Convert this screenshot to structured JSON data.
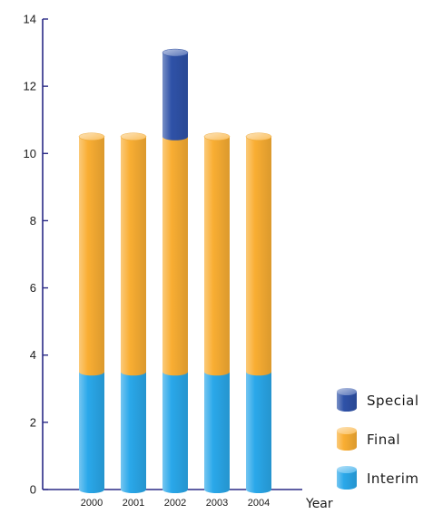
{
  "chart_data": {
    "type": "bar",
    "stacked": true,
    "style": "3d-cylinder",
    "categories": [
      "2000",
      "2001",
      "2002",
      "2003",
      "2004"
    ],
    "series": [
      {
        "name": "Interim",
        "values": [
          3.5,
          3.5,
          3.5,
          3.5,
          3.5
        ],
        "color": "#2aa8ea"
      },
      {
        "name": "Final",
        "values": [
          7.0,
          7.0,
          7.0,
          7.0,
          7.0
        ],
        "color": "#f9ae33"
      },
      {
        "name": "Special",
        "values": [
          0,
          0,
          2.5,
          0,
          0
        ],
        "color": "#2f52a8"
      }
    ],
    "xlabel": "Year",
    "ylabel": "",
    "ylim": [
      0,
      14
    ],
    "yticks": [
      0,
      2,
      4,
      6,
      8,
      10,
      12,
      14
    ],
    "grid": false,
    "legend_position": "bottom-right",
    "axis_color": "#2a2a86"
  }
}
